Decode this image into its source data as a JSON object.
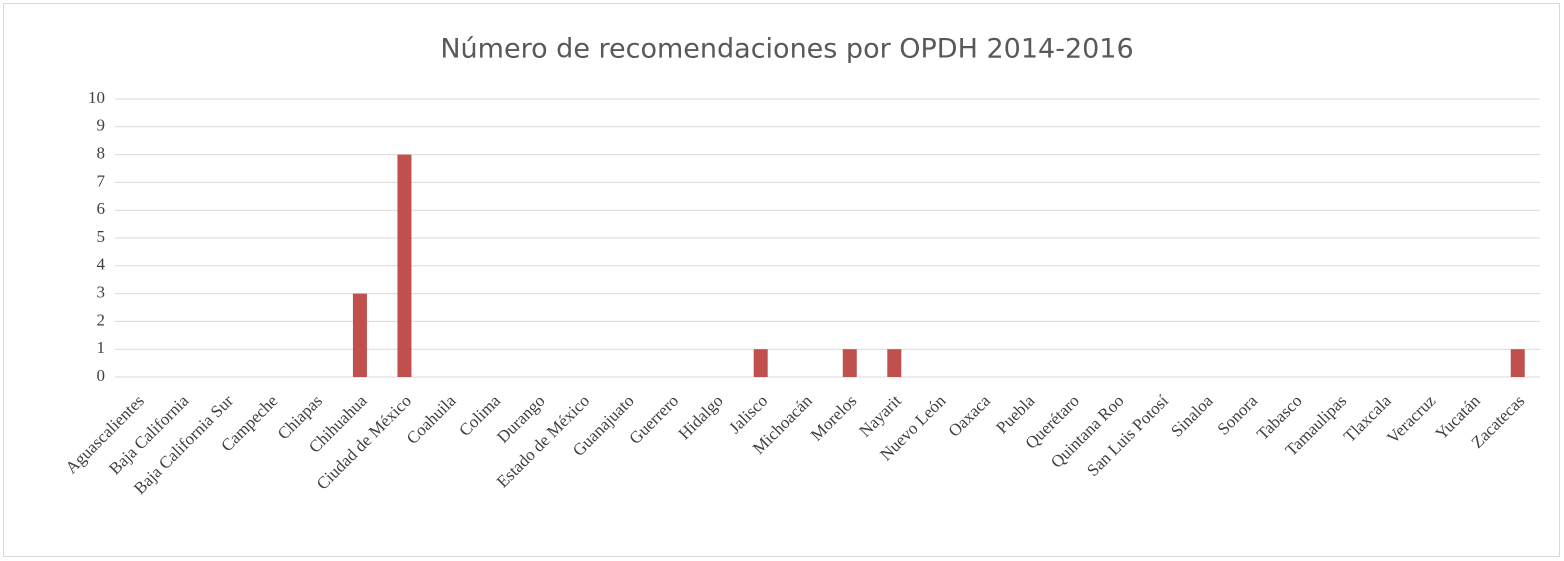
{
  "chart_data": {
    "type": "bar",
    "title": "Número de recomendaciones por OPDH 2014-2016",
    "categories": [
      "Aguascalientes",
      "Baja California",
      "Baja California Sur",
      "Campeche",
      "Chiapas",
      "Chihuahua",
      "Ciudad de México",
      "Coahuila",
      "Colima",
      "Durango",
      "Estado de México",
      "Guanajuato",
      "Guerrero",
      "Hidalgo",
      "Jalisco",
      "Michoacán",
      "Morelos",
      "Nayarit",
      "Nuevo León",
      "Oaxaca",
      "Puebla",
      "Querétaro",
      "Quintana Roo",
      "San Luis Potosí",
      "Sinaloa",
      "Sonora",
      "Tabasco",
      "Tamaulipas",
      "Tlaxcala",
      "Veracruz",
      "Yucatán",
      "Zacatecas"
    ],
    "values": [
      0,
      0,
      0,
      0,
      0,
      3,
      8,
      0,
      0,
      0,
      0,
      0,
      0,
      0,
      1,
      0,
      1,
      1,
      0,
      0,
      0,
      0,
      0,
      0,
      0,
      0,
      0,
      0,
      0,
      0,
      0,
      1
    ],
    "color": "#c0504d",
    "ylim": [
      0,
      10
    ],
    "yticks": [
      0,
      1,
      2,
      3,
      4,
      5,
      6,
      7,
      8,
      9,
      10
    ],
    "grid": true
  }
}
